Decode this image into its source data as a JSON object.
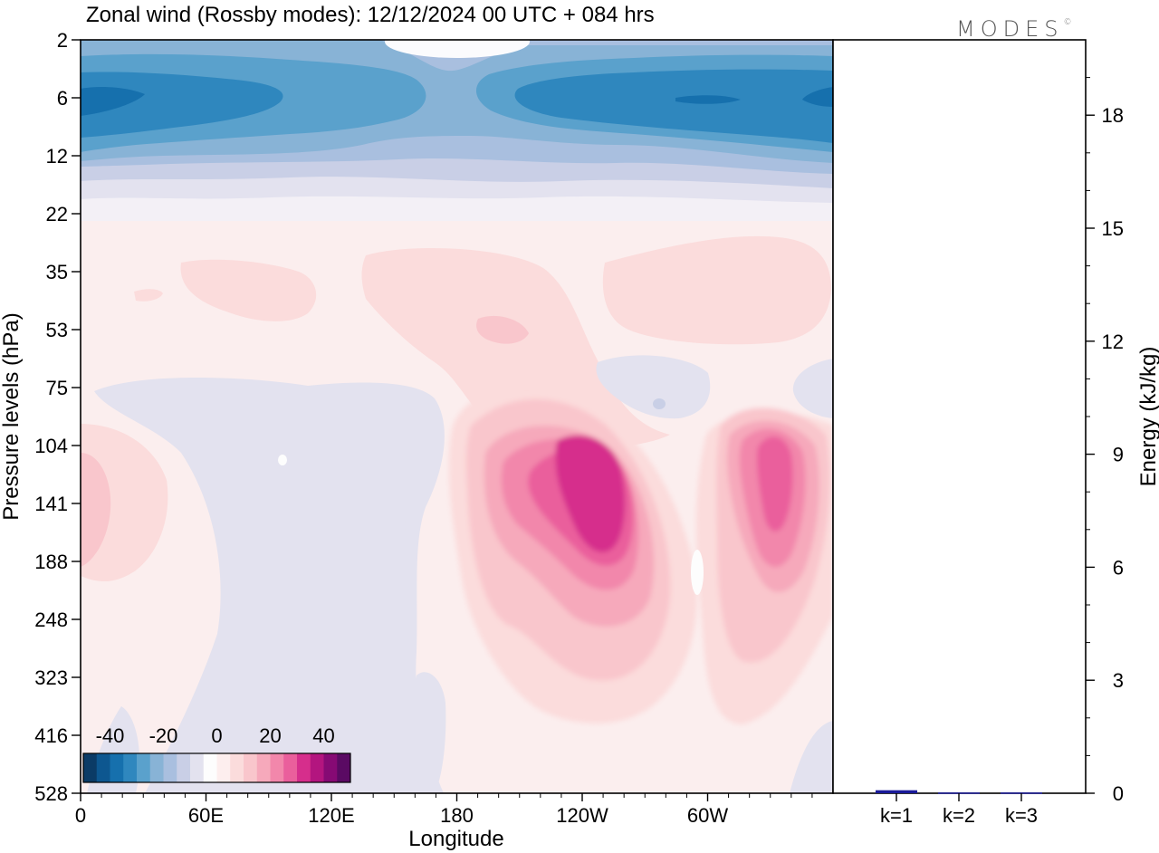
{
  "brand": {
    "name": "MODES",
    "mark": "©"
  },
  "chart_data": [
    {
      "type": "heatmap",
      "title": "Zonal wind (Rossby modes):  12/12/2024  00 UTC  + 084 hrs",
      "xlabel": "Longitude",
      "ylabel": "Pressure levels (hPa)",
      "x_ticks": [
        "0",
        "60E",
        "120E",
        "180",
        "120W",
        "60W"
      ],
      "x_tick_degrees": [
        0,
        60,
        120,
        180,
        240,
        300
      ],
      "xlim_degrees": [
        0,
        360
      ],
      "y_levels_hPa": [
        "2",
        "6",
        "12",
        "22",
        "35",
        "53",
        "75",
        "104",
        "141",
        "188",
        "248",
        "323",
        "416",
        "528"
      ],
      "colorbar": {
        "ticks": [
          "-40",
          "-20",
          "0",
          "20",
          "40"
        ],
        "range": [
          -50,
          50
        ],
        "step": 5,
        "colors": [
          "#0b3b66",
          "#0d5790",
          "#1670ad",
          "#2f87be",
          "#5aa1cc",
          "#88b3d6",
          "#a9bfdf",
          "#c9cfe6",
          "#e3e2ef",
          "#fdfdfd",
          "#fdeeee",
          "#fbdcdc",
          "#f9c6cc",
          "#f6a9bb",
          "#f287ab",
          "#ea5f9c",
          "#d62e8c",
          "#b3157f",
          "#860a74",
          "#5a0a63"
        ]
      },
      "features": [
        {
          "lon": 20,
          "level": "6",
          "value": -30
        },
        {
          "lon": 275,
          "level": "6",
          "value": -30
        },
        {
          "lon": 345,
          "level": "6",
          "value": -33
        },
        {
          "lon": 50,
          "level": "35",
          "value": 8
        },
        {
          "lon": 195,
          "level": "53",
          "value": 12
        },
        {
          "lon": 330,
          "level": "35",
          "value": 8
        },
        {
          "lon": 100,
          "level": "141",
          "value": -3
        },
        {
          "lon": 245,
          "level": "141",
          "value": 30
        },
        {
          "lon": 328,
          "level": "141",
          "value": 25
        },
        {
          "lon": 10,
          "level": "141",
          "value": 12
        }
      ]
    },
    {
      "type": "bar",
      "ylabel": "Energy (kJ/kg)",
      "categories": [
        "k=1",
        "k=2",
        "k=3"
      ],
      "values": [
        0.08,
        0.02,
        0.02
      ],
      "ylim": [
        0,
        20
      ],
      "y_ticks": [
        "0",
        "3",
        "6",
        "9",
        "12",
        "15",
        "18"
      ],
      "bar_color": "#1a1a99"
    }
  ]
}
